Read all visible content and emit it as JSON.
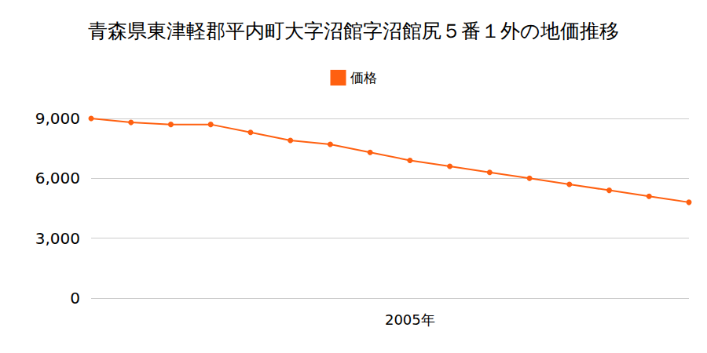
{
  "chart_data": {
    "type": "line",
    "title": "青森県東津軽郡平内町大字沼館字沼館尻５番１外の地価推移",
    "categories": [
      null,
      null,
      null,
      null,
      null,
      null,
      null,
      null,
      "2005年",
      null,
      null,
      null,
      null,
      null,
      null,
      null
    ],
    "series": [
      {
        "name": "価格",
        "color": "#ff6010",
        "values": [
          9000,
          8800,
          8700,
          8700,
          8300,
          7900,
          7700,
          7300,
          6900,
          6600,
          6300,
          6000,
          5700,
          5400,
          5100,
          4800
        ]
      }
    ],
    "ylim": [
      0,
      9000
    ],
    "yticks": [
      0,
      {
        "value": 3000,
        "label": "3,000"
      },
      {
        "value": 6000,
        "label": "6,000"
      },
      {
        "value": 9000,
        "label": "9,000"
      }
    ],
    "grid": true,
    "legend": "top",
    "marker": "circle"
  }
}
